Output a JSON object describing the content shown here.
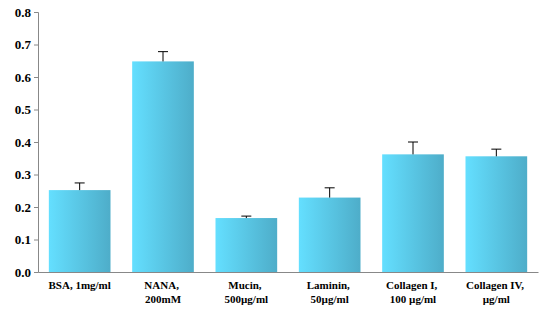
{
  "chart_data": {
    "type": "bar",
    "categories": [
      "BSA, 1mg/ml",
      "NANA, 200mM",
      "Mucin, 500µg/ml",
      "Laminin, 50µg/ml",
      "Collagen I, 100 µg/ml",
      "Collagen IV, µg/ml"
    ],
    "values": [
      0.252,
      0.648,
      0.166,
      0.229,
      0.362,
      0.356
    ],
    "errors": [
      0.022,
      0.03,
      0.006,
      0.03,
      0.038,
      0.022
    ],
    "color": "#5ac8e8",
    "ylim": [
      0,
      0.8
    ],
    "yticks": [
      {
        "value": 0,
        "label": "0.0"
      },
      0.1,
      0.2,
      0.3,
      0.4,
      0.5,
      0.6,
      0.7,
      0.8
    ],
    "grid": false
  }
}
